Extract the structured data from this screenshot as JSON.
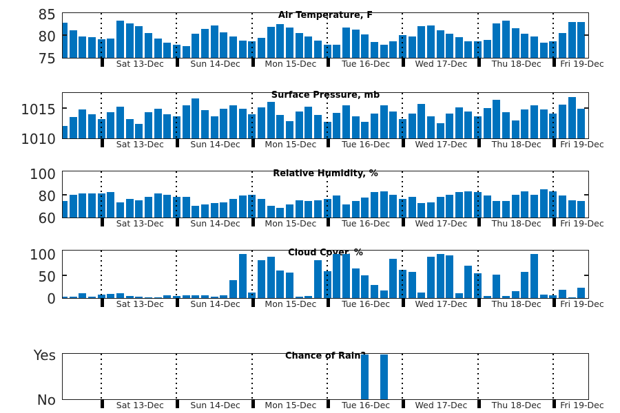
{
  "figure": {
    "background": "#ffffff",
    "bar_color": "#0072BD",
    "axis_color": "#1a1a1a",
    "tick_label_color": "#262626"
  },
  "x_axis": {
    "day_labels": [
      "Sat 13-Dec",
      "Sun 14-Dec",
      "Mon 15-Dec",
      "Tue 16-Dec",
      "Wed 17-Dec",
      "Thu 18-Dec",
      "Fri 19-Dec"
    ],
    "bars_per_day": 8,
    "gridline_style": "dotted"
  },
  "chart_data": [
    {
      "type": "bar",
      "title": "Air Temperature, F",
      "ylim": [
        75,
        85
      ],
      "yticks": [
        {
          "v": 75,
          "label": "75"
        },
        {
          "v": 80,
          "label": "80"
        },
        {
          "v": 85,
          "label": "85"
        }
      ],
      "values": [
        83.0,
        81.2,
        79.8,
        79.7,
        79.2,
        79.4,
        83.4,
        82.8,
        82.2,
        80.7,
        79.3,
        78.5,
        77.9,
        77.7,
        80.5,
        81.5,
        82.3,
        80.8,
        79.8,
        78.9,
        78.7,
        79.5,
        82.1,
        82.6,
        81.8,
        80.6,
        79.9,
        78.9,
        78.0,
        77.9,
        81.9,
        81.4,
        80.3,
        78.6,
        77.9,
        78.8,
        80.2,
        79.9,
        82.2,
        82.4,
        81.2,
        80.5,
        79.7,
        78.8,
        78.7,
        79.0,
        82.8,
        83.4,
        81.7,
        80.4,
        79.8,
        78.4,
        78.7,
        80.6,
        83.2,
        83.2
      ]
    },
    {
      "type": "bar",
      "title": "Surface Pressure, mb",
      "ylim": [
        1010,
        1017.6
      ],
      "yticks": [
        {
          "v": 1010,
          "label": "1010"
        },
        {
          "v": 1015,
          "label": "1015"
        }
      ],
      "values": [
        1012.1,
        1013.6,
        1014.9,
        1014.1,
        1013.3,
        1014.4,
        1015.4,
        1013.3,
        1012.5,
        1014.5,
        1015.0,
        1014.1,
        1013.8,
        1015.6,
        1016.8,
        1014.8,
        1013.7,
        1015.0,
        1015.6,
        1015.0,
        1014.1,
        1015.3,
        1016.2,
        1014.0,
        1012.9,
        1014.6,
        1015.4,
        1014.0,
        1012.8,
        1014.3,
        1015.6,
        1013.8,
        1012.8,
        1014.2,
        1015.6,
        1014.6,
        1013.3,
        1014.2,
        1015.8,
        1013.8,
        1012.6,
        1014.2,
        1015.3,
        1014.6,
        1013.8,
        1015.2,
        1016.5,
        1014.5,
        1013.1,
        1014.9,
        1015.6,
        1014.9,
        1014.2,
        1015.7,
        1017.0,
        1015.0
      ]
    },
    {
      "type": "bar",
      "title": "Relative Humidity, %",
      "ylim": [
        60,
        101.5
      ],
      "yticks": [
        {
          "v": 60,
          "label": "60"
        },
        {
          "v": 80,
          "label": "80"
        },
        {
          "v": 100,
          "label": "100"
        }
      ],
      "values": [
        75,
        81,
        82,
        82,
        82,
        83,
        74,
        77,
        76,
        79,
        82,
        81,
        79,
        79,
        71,
        72,
        73,
        74,
        77,
        80,
        81,
        77,
        71,
        69,
        72,
        76,
        75,
        76,
        77,
        80,
        72,
        75,
        78,
        83,
        84,
        81,
        77,
        79,
        73,
        74,
        79,
        81,
        83,
        84,
        83,
        80,
        75,
        75,
        81,
        84,
        81,
        86,
        84,
        80,
        76,
        75
      ]
    },
    {
      "type": "bar",
      "title": "Cloud Cover, %",
      "ylim": [
        0,
        106.5
      ],
      "yticks": [
        {
          "v": 0,
          "label": "0"
        },
        {
          "v": 50,
          "label": "50"
        },
        {
          "v": 100,
          "label": "100"
        }
      ],
      "values": [
        3,
        3,
        11,
        3,
        8,
        10,
        11,
        5,
        3,
        1,
        1,
        7,
        4,
        7,
        6,
        6,
        3,
        6,
        40,
        100,
        13,
        86,
        94,
        63,
        58,
        3,
        4,
        86,
        61,
        100,
        100,
        68,
        51,
        29,
        18,
        90,
        65,
        59,
        12,
        94,
        100,
        97,
        11,
        74,
        56,
        5,
        53,
        4,
        16,
        60,
        100,
        8,
        7,
        19,
        2,
        23
      ]
    },
    {
      "type": "bar",
      "title": "Chance of Rain?",
      "ylim": [
        0,
        1
      ],
      "yticks": [
        {
          "v": 0,
          "label": "No"
        },
        {
          "v": 1,
          "label": "Yes"
        }
      ],
      "values": [
        0,
        0,
        0,
        0,
        0,
        0,
        0,
        0,
        0,
        0,
        0,
        0,
        0,
        0,
        0,
        0,
        0,
        0,
        0,
        0,
        0,
        0,
        0,
        0,
        0,
        0,
        0,
        0,
        0,
        0,
        0,
        0,
        1,
        0,
        1,
        0,
        0,
        0,
        0,
        0,
        0,
        0,
        0,
        0,
        0,
        0,
        0,
        0,
        0,
        0,
        0,
        0,
        0,
        0,
        0,
        0
      ]
    }
  ]
}
